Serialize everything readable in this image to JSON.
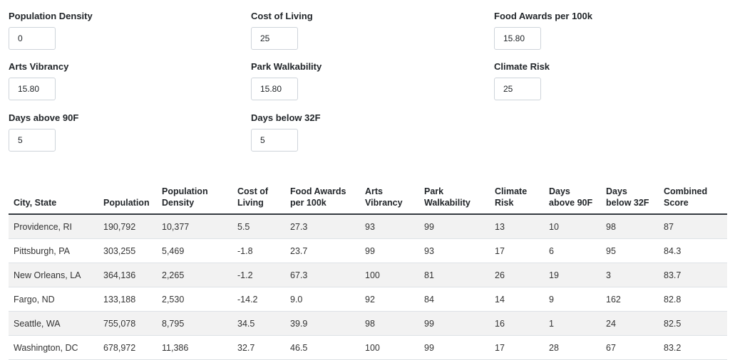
{
  "filters": [
    {
      "label": "Population Density",
      "value": "0"
    },
    {
      "label": "Cost of Living",
      "value": "25"
    },
    {
      "label": "Food Awards per 100k",
      "value": "15.80"
    },
    {
      "label": "Arts Vibrancy",
      "value": "15.80"
    },
    {
      "label": "Park Walkability",
      "value": "15.80"
    },
    {
      "label": "Climate Risk",
      "value": "25"
    },
    {
      "label": "Days above 90F",
      "value": "5"
    },
    {
      "label": "Days below 32F",
      "value": "5"
    }
  ],
  "table": {
    "headers": [
      "City, State",
      "Population",
      "Population Density",
      "Cost of Living",
      "Food Awards per 100k",
      "Arts Vibrancy",
      "Park Walkability",
      "Climate Risk",
      "Days above 90F",
      "Days below 32F",
      "Combined Score"
    ],
    "rows": [
      [
        "Providence, RI",
        "190,792",
        "10,377",
        "5.5",
        "27.3",
        "93",
        "99",
        "13",
        "10",
        "98",
        "87"
      ],
      [
        "Pittsburgh, PA",
        "303,255",
        "5,469",
        "-1.8",
        "23.7",
        "99",
        "93",
        "17",
        "6",
        "95",
        "84.3"
      ],
      [
        "New Orleans, LA",
        "364,136",
        "2,265",
        "-1.2",
        "67.3",
        "100",
        "81",
        "26",
        "19",
        "3",
        "83.7"
      ],
      [
        "Fargo, ND",
        "133,188",
        "2,530",
        "-14.2",
        "9.0",
        "92",
        "84",
        "14",
        "9",
        "162",
        "82.8"
      ],
      [
        "Seattle, WA",
        "755,078",
        "8,795",
        "34.5",
        "39.9",
        "98",
        "99",
        "16",
        "1",
        "24",
        "82.5"
      ],
      [
        "Washington, DC",
        "678,972",
        "11,386",
        "32.7",
        "46.5",
        "100",
        "99",
        "17",
        "28",
        "67",
        "83.2"
      ]
    ]
  }
}
